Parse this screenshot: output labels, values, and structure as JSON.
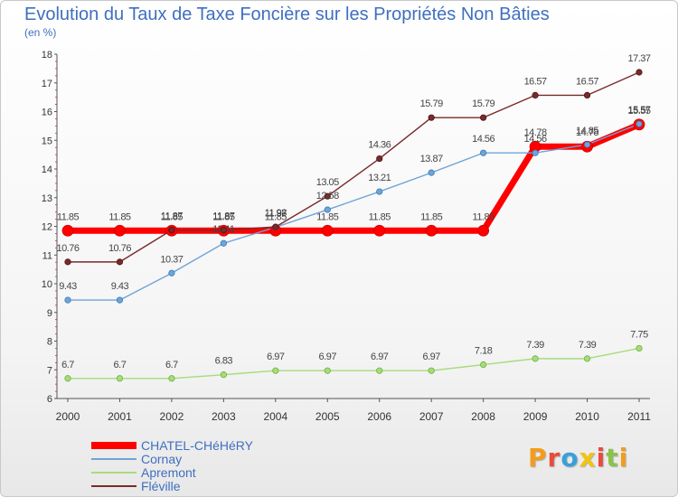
{
  "chart_data": {
    "type": "line",
    "title": "Evolution du Taux de Taxe Foncière sur les Propriétés Non Bâties",
    "ylabel": "(en %)",
    "xlabel": "",
    "x": [
      "2000",
      "2001",
      "2002",
      "2003",
      "2004",
      "2005",
      "2006",
      "2007",
      "2008",
      "2009",
      "2010",
      "2011"
    ],
    "ylim": [
      6,
      18
    ],
    "yticks": [
      "6",
      "7",
      "8",
      "9",
      "10",
      "11",
      "12",
      "13",
      "14",
      "15",
      "16",
      "17",
      "18"
    ],
    "legend_position": "bottom-left",
    "series": [
      {
        "name": "CHATEL-CHéHéRY",
        "color": "#ff0000",
        "values": [
          11.85,
          11.85,
          11.85,
          11.85,
          11.85,
          11.85,
          11.85,
          11.85,
          11.85,
          14.78,
          14.78,
          15.55
        ],
        "labels": [
          "11.85",
          "11.85",
          "11.85",
          "11.85",
          "11.85",
          "11.85",
          "11.85",
          "11.85",
          "11.85",
          "14.78",
          "14.78",
          "15.55"
        ]
      },
      {
        "name": "Cornay",
        "color": "#6fa4d8",
        "values": [
          9.43,
          9.43,
          10.37,
          11.41,
          11.97,
          12.58,
          13.21,
          13.87,
          14.56,
          14.56,
          14.85,
          15.57
        ],
        "labels": [
          "9.43",
          "9.43",
          "10.37",
          "11.41",
          "11.97",
          "12.58",
          "13.21",
          "13.87",
          "14.56",
          "14.56",
          "14.85",
          "15.57"
        ]
      },
      {
        "name": "Apremont",
        "color": "#a6dc7a",
        "values": [
          6.7,
          6.7,
          6.7,
          6.83,
          6.97,
          6.97,
          6.97,
          6.97,
          7.18,
          7.39,
          7.39,
          7.75
        ],
        "labels": [
          "6.7",
          "6.7",
          "6.7",
          "6.83",
          "6.97",
          "6.97",
          "6.97",
          "6.97",
          "7.18",
          "7.39",
          "7.39",
          "7.75"
        ]
      },
      {
        "name": "Fléville",
        "color": "#7a2a2a",
        "values": [
          10.76,
          10.76,
          11.87,
          11.87,
          11.98,
          13.05,
          14.36,
          15.79,
          15.79,
          16.57,
          16.57,
          17.37
        ],
        "labels": [
          "10.76",
          "10.76",
          "11.87",
          "11.87",
          "11.98",
          "13.05",
          "14.36",
          "15.79",
          "15.79",
          "16.57",
          "16.57",
          "17.37"
        ]
      }
    ]
  },
  "logo": {
    "letters": [
      "P",
      "r",
      "o",
      "x",
      "i",
      "t",
      "i"
    ],
    "colors": [
      "#f39c1c",
      "#e74c3c",
      "#3aa0d8",
      "#f1c40f",
      "#e74c3c",
      "#8bc34a",
      "#f39c1c"
    ]
  }
}
